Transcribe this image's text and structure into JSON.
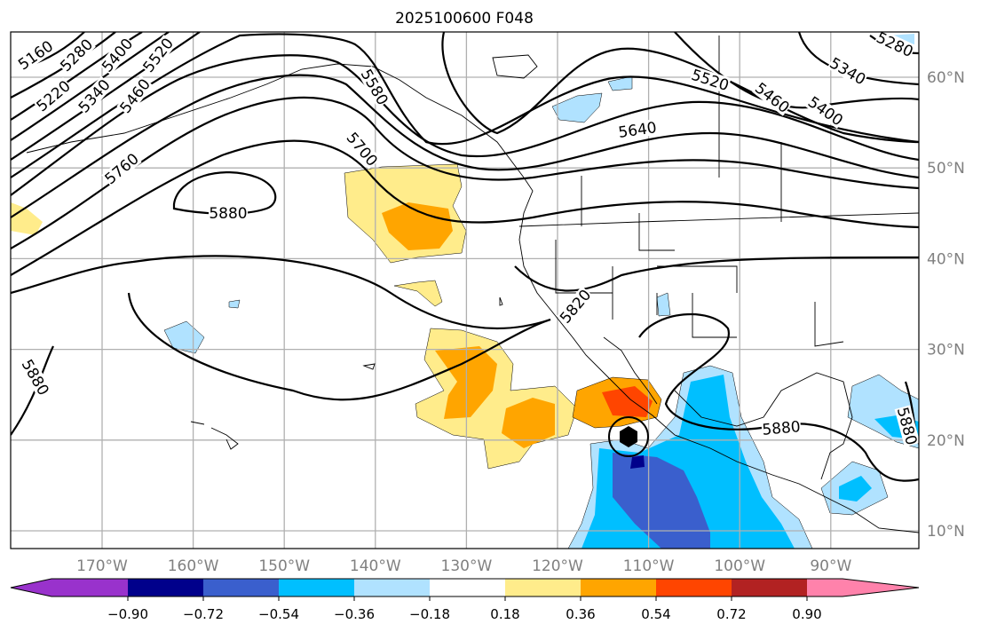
{
  "title": "2025100600 F048",
  "lon_labels": [
    "170°W",
    "160°W",
    "150°W",
    "140°W",
    "130°W",
    "120°W",
    "110°W",
    "100°W",
    "90°W"
  ],
  "lat_labels": [
    "60°N",
    "50°N",
    "40°N",
    "30°N",
    "20°N",
    "10°N"
  ],
  "contour_labels": [
    {
      "text": "5160",
      "rot": -35
    },
    {
      "text": "5220",
      "rot": -40
    },
    {
      "text": "5280",
      "rot": -45
    },
    {
      "text": "5340",
      "rot": -48
    },
    {
      "text": "5400",
      "rot": -50
    },
    {
      "text": "5460",
      "rot": -52
    },
    {
      "text": "5520",
      "rot": -52
    },
    {
      "text": "5760",
      "rot": -40
    },
    {
      "text": "5580",
      "rot": 60
    },
    {
      "text": "5700",
      "rot": 50
    },
    {
      "text": "5880",
      "rot": 0
    },
    {
      "text": "5640",
      "rot": -8
    },
    {
      "text": "5520",
      "rot": 18
    },
    {
      "text": "5460",
      "rot": 38
    },
    {
      "text": "5400",
      "rot": 35
    },
    {
      "text": "5340",
      "rot": 30
    },
    {
      "text": "5280",
      "rot": 25
    },
    {
      "text": "5820",
      "rot": -50
    },
    {
      "text": "5880",
      "rot": -5
    },
    {
      "text": "5880",
      "rot": 60
    },
    {
      "text": "5880",
      "rot": 75
    }
  ],
  "colorbar": {
    "colors": [
      "#9932cc",
      "#00008b",
      "#3a5fcd",
      "#00bfff",
      "#b0e2ff",
      "#ffffff",
      "#ffec8b",
      "#ffa500",
      "#ff4500",
      "#b22222",
      "#ff82ab"
    ],
    "ticks": [
      "−0.90",
      "−0.72",
      "−0.54",
      "−0.36",
      "−0.18",
      "0.18",
      "0.36",
      "0.54",
      "0.72",
      "0.90"
    ]
  }
}
